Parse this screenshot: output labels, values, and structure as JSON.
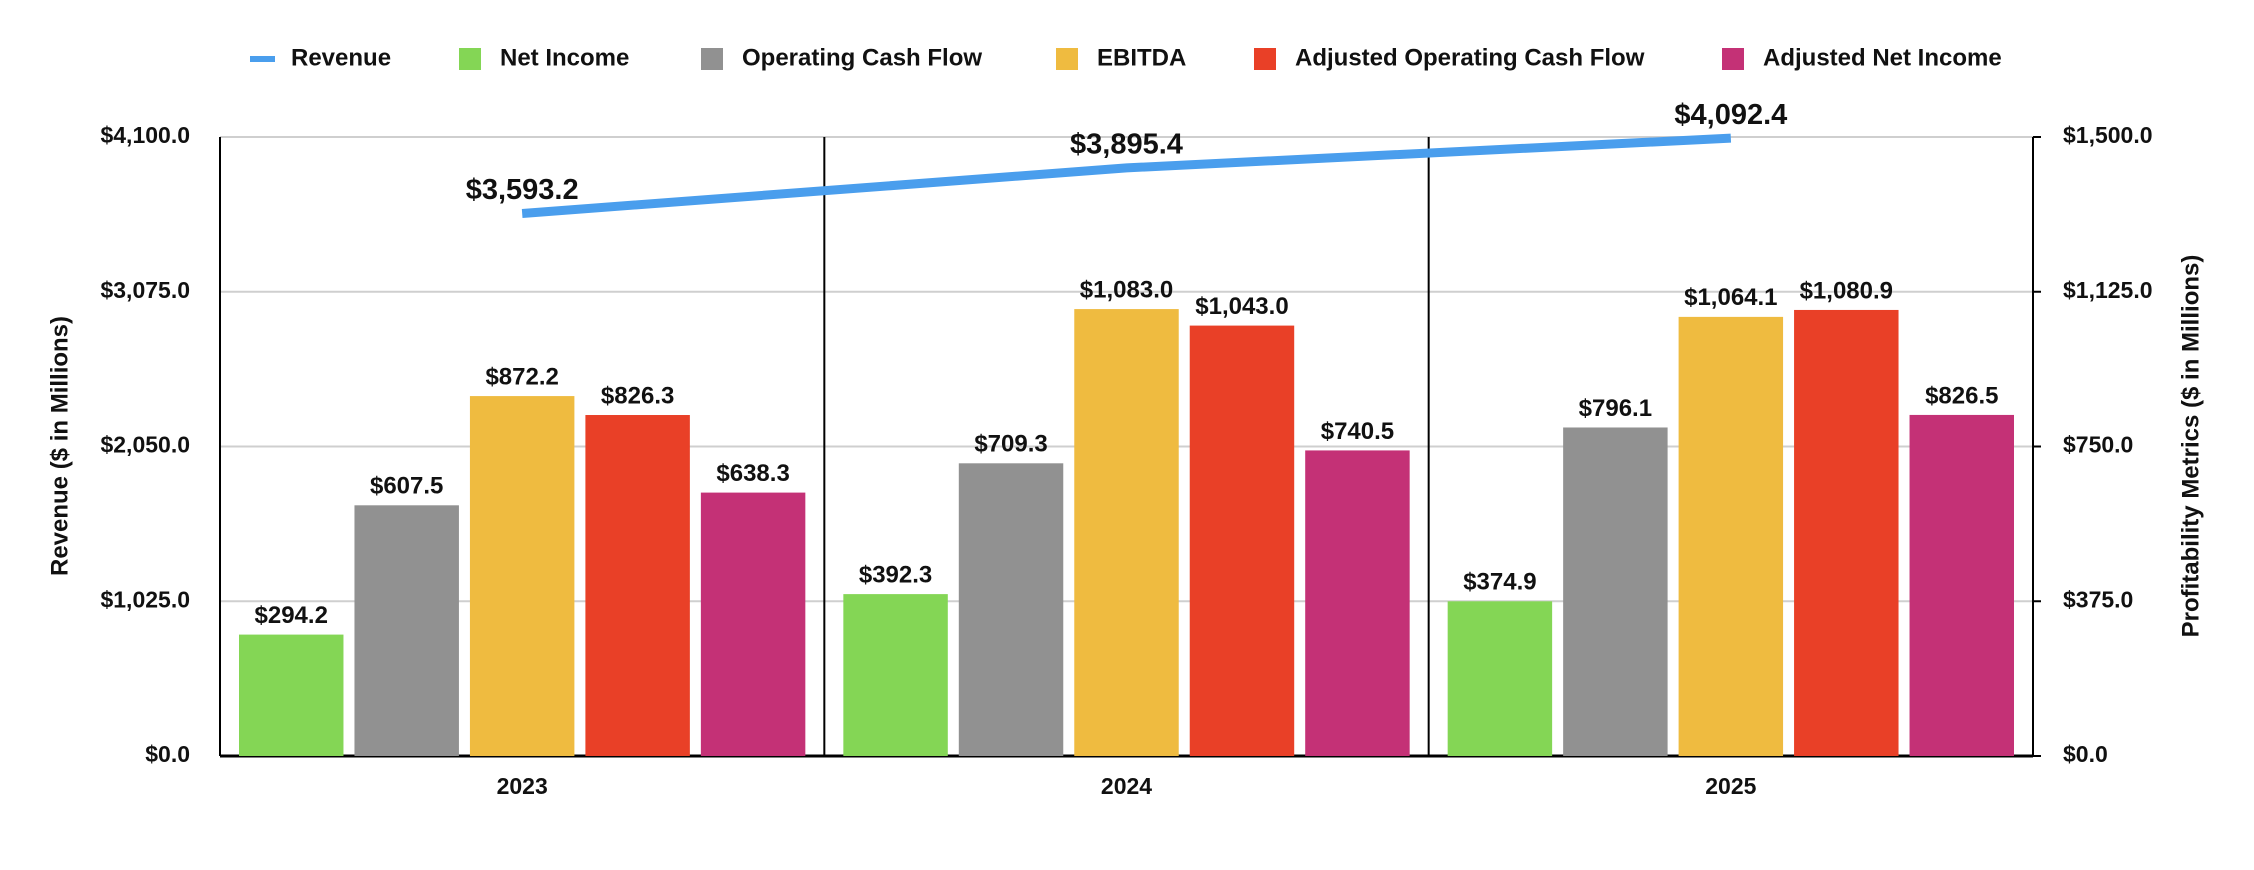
{
  "chart_data": {
    "type": "bar",
    "categories": [
      "2023",
      "2024",
      "2025"
    ],
    "series": [
      {
        "name": "Revenue",
        "type": "line",
        "axis": "y",
        "color": "#4a9eed",
        "values": [
          3593.2,
          3895.4,
          4092.4
        ],
        "value_labels": [
          "$3,593.2",
          "$3,895.4",
          "$4,092.4"
        ]
      },
      {
        "name": "Net Income",
        "axis": "y2",
        "color": "#84d655",
        "values": [
          294.2,
          392.3,
          374.9
        ],
        "value_labels": [
          "$294.2",
          "$392.3",
          "$374.9"
        ]
      },
      {
        "name": "Operating Cash Flow",
        "axis": "y2",
        "color": "#919191",
        "values": [
          607.5,
          709.3,
          796.1
        ],
        "value_labels": [
          "$607.5",
          "$709.3",
          "$796.1"
        ]
      },
      {
        "name": "EBITDA",
        "axis": "y2",
        "color": "#efbb40",
        "values": [
          872.2,
          1083.0,
          1064.1
        ],
        "value_labels": [
          "$872.2",
          "$1,083.0",
          "$1,064.1"
        ]
      },
      {
        "name": "Adjusted Operating Cash Flow",
        "axis": "y2",
        "color": "#e94027",
        "values": [
          826.3,
          1043.0,
          1080.9
        ],
        "value_labels": [
          "$826.3",
          "$1,043.0",
          "$1,080.9"
        ]
      },
      {
        "name": "Adjusted Net Income",
        "axis": "y2",
        "color": "#c43176",
        "values": [
          638.3,
          740.5,
          826.5
        ],
        "value_labels": [
          "$638.3",
          "$740.5",
          "$826.5"
        ]
      }
    ],
    "y_label": "Revenue ($ in Millions)",
    "y2_label": "Profitability Metrics ($ in Millions)",
    "ylim": [
      0,
      4100
    ],
    "yticks": [
      {
        "value": 0,
        "label": "$0.0"
      },
      {
        "value": 1025,
        "label": "$1,025.0"
      },
      {
        "value": 2050,
        "label": "$2,050.0"
      },
      {
        "value": 3075,
        "label": "$3,075.0"
      },
      {
        "value": 4100,
        "label": "$4,100.0"
      }
    ],
    "y2lim": [
      0,
      1500
    ],
    "y2ticks": [
      {
        "value": 0,
        "label": "$0.0"
      },
      {
        "value": 375,
        "label": "$375.0"
      },
      {
        "value": 750,
        "label": "$750.0"
      },
      {
        "value": 1125,
        "label": "$1,125.0"
      },
      {
        "value": 1500,
        "label": "$1,500.0"
      }
    ],
    "grid": true,
    "legend": "top"
  }
}
